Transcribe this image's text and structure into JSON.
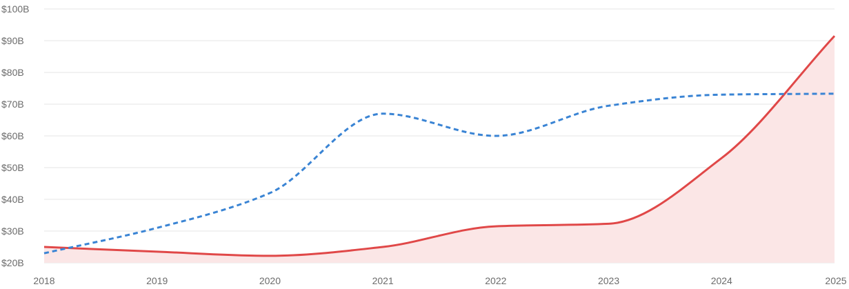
{
  "chart_data": {
    "type": "line",
    "title": "",
    "xlabel": "",
    "ylabel": "",
    "x": [
      2018,
      2019,
      2020,
      2021,
      2022,
      2023,
      2024,
      2025
    ],
    "x_tick_labels": [
      "2018",
      "2019",
      "2020",
      "2021",
      "2022",
      "2023",
      "2024",
      "2025"
    ],
    "y_tick_labels": [
      "$20B",
      "$30B",
      "$40B",
      "$50B",
      "$60B",
      "$70B",
      "$80B",
      "$90B",
      "$100B"
    ],
    "y_ticks": [
      20,
      30,
      40,
      50,
      60,
      70,
      80,
      90,
      100
    ],
    "ylim": [
      20,
      100
    ],
    "xlim": [
      2018,
      2025
    ],
    "grid": true,
    "legend": "none",
    "series": [
      {
        "style": "solid-area",
        "color": "#e04848",
        "fill": "#fbe6e6",
        "values": [
          25,
          23.5,
          22.2,
          25,
          31.5,
          32.3,
          53,
          91.5
        ]
      },
      {
        "style": "dashed",
        "color": "#3a84d4",
        "values": [
          23,
          31,
          42,
          67,
          60,
          69.5,
          73,
          73.3
        ]
      }
    ]
  }
}
